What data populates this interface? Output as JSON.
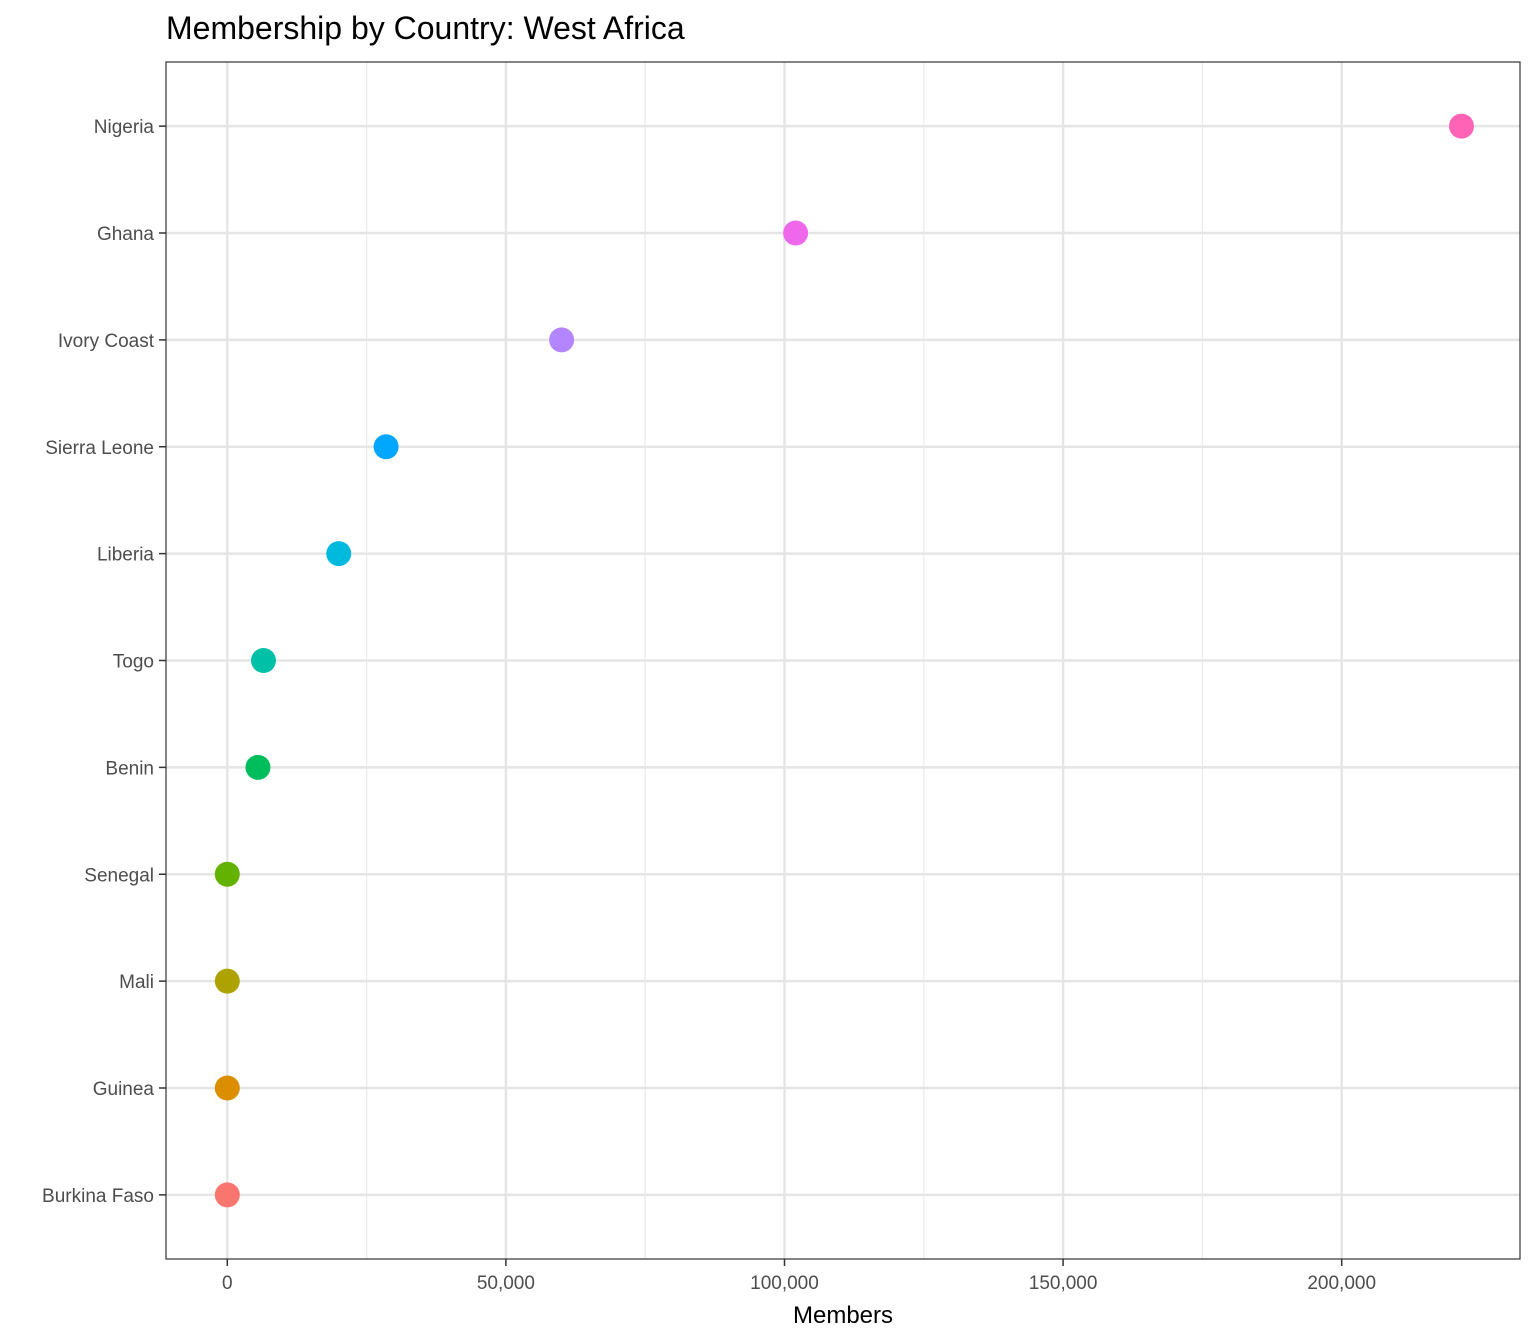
{
  "chart_data": {
    "type": "scatter",
    "title": "Membership by Country: West Africa",
    "xlabel": "Members",
    "ylabel": "",
    "xlim": [
      -11000,
      232000
    ],
    "x_ticks": [
      0,
      50000,
      100000,
      150000,
      200000
    ],
    "x_tick_labels": [
      "0",
      "50,000",
      "100,000",
      "150,000",
      "200,000"
    ],
    "categories": [
      "Burkina Faso",
      "Guinea",
      "Mali",
      "Senegal",
      "Benin",
      "Togo",
      "Liberia",
      "Sierra Leone",
      "Ivory Coast",
      "Ghana",
      "Nigeria"
    ],
    "values": [
      0,
      0,
      0,
      0,
      5500,
      6500,
      20000,
      28500,
      60000,
      102000,
      221500
    ],
    "colors": [
      "#F8766D",
      "#DB8E00",
      "#AEA200",
      "#64B200",
      "#00BD5C",
      "#00C1A7",
      "#00BADE",
      "#00A6FF",
      "#B385FF",
      "#EF67EB",
      "#FF63B6"
    ],
    "grid": true,
    "legend": "none"
  }
}
